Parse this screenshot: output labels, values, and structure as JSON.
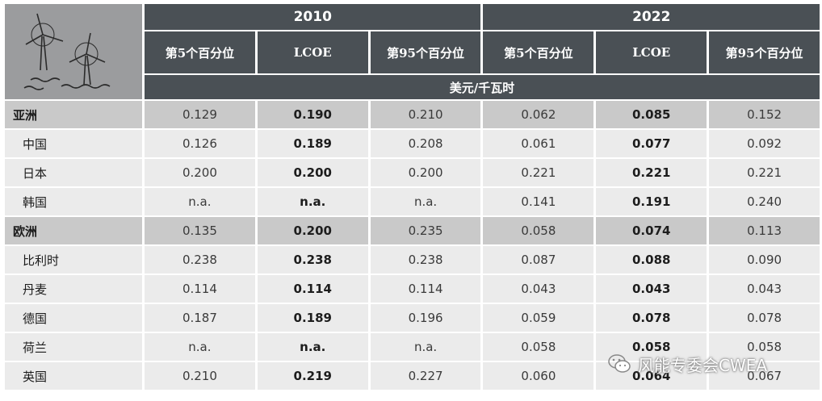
{
  "header": {
    "years": [
      "2010",
      "2022"
    ],
    "columns": [
      "第5个百分位",
      "LCOE",
      "第95个百分位"
    ],
    "unit": "美元/千瓦时"
  },
  "rows": [
    {
      "label": "亚洲",
      "type": "region",
      "v": [
        "0.129",
        "0.190",
        "0.210",
        "0.062",
        "0.085",
        "0.152"
      ]
    },
    {
      "label": "中国",
      "type": "country",
      "v": [
        "0.126",
        "0.189",
        "0.208",
        "0.061",
        "0.077",
        "0.092"
      ]
    },
    {
      "label": "日本",
      "type": "country",
      "v": [
        "0.200",
        "0.200",
        "0.200",
        "0.221",
        "0.221",
        "0.221"
      ]
    },
    {
      "label": "韩国",
      "type": "country",
      "v": [
        "n.a.",
        "n.a.",
        "n.a.",
        "0.141",
        "0.191",
        "0.240"
      ]
    },
    {
      "label": "欧洲",
      "type": "region",
      "v": [
        "0.135",
        "0.200",
        "0.235",
        "0.058",
        "0.074",
        "0.113"
      ]
    },
    {
      "label": "比利时",
      "type": "country",
      "v": [
        "0.238",
        "0.238",
        "0.238",
        "0.087",
        "0.088",
        "0.090"
      ]
    },
    {
      "label": "丹麦",
      "type": "country",
      "v": [
        "0.114",
        "0.114",
        "0.114",
        "0.043",
        "0.043",
        "0.043"
      ]
    },
    {
      "label": "德国",
      "type": "country",
      "v": [
        "0.187",
        "0.189",
        "0.196",
        "0.059",
        "0.078",
        "0.078"
      ]
    },
    {
      "label": "荷兰",
      "type": "country",
      "v": [
        "n.a.",
        "n.a.",
        "n.a.",
        "0.058",
        "0.058",
        "0.058"
      ]
    },
    {
      "label": "英国",
      "type": "country",
      "v": [
        "0.210",
        "0.219",
        "0.227",
        "0.060",
        "0.064",
        "0.067"
      ]
    }
  ],
  "watermark": {
    "text": "风能专委会CWEA",
    "icon": "wechat-icon"
  }
}
